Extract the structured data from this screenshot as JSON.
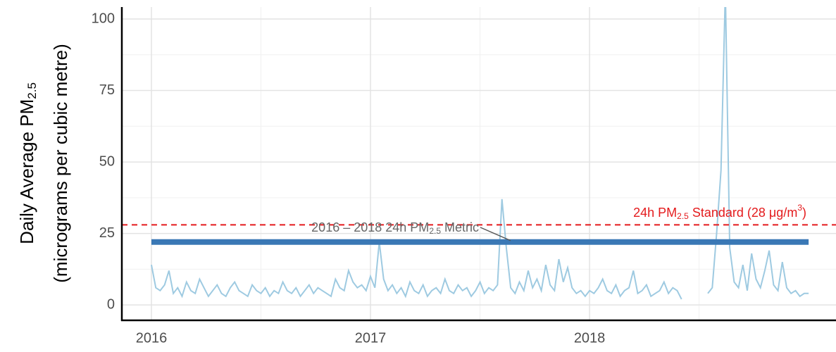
{
  "chart_data": {
    "type": "line",
    "y_label": {
      "main": "Daily Average  PM",
      "sub": "2.5",
      "line2": "(micrograms per cubic metre)"
    },
    "xlim": [
      2015.865,
      2019.125
    ],
    "ylim": [
      -5.4,
      104.2
    ],
    "xticks": [
      2016,
      2017,
      2018
    ],
    "yticks": [
      0,
      25,
      50,
      75,
      100
    ],
    "x_minor_ticks": [
      2016.5,
      2017.5,
      2018.5
    ],
    "y_minor_ticks": [
      12.5,
      37.5,
      62.5,
      87.5
    ],
    "grid": true,
    "series": [
      {
        "color": "#9ecae1",
        "x": [
          2016,
          2016.02,
          2016.04,
          2016.06,
          2016.08,
          2016.1,
          2016.12,
          2016.14,
          2016.16,
          2016.18,
          2016.2,
          2016.22,
          2016.24,
          2016.26,
          2016.28,
          2016.3,
          2016.32,
          2016.34,
          2016.36,
          2016.38,
          2016.4,
          2016.42,
          2016.44,
          2016.46,
          2016.48,
          2016.5,
          2016.52,
          2016.54,
          2016.56,
          2016.58,
          2016.6,
          2016.62,
          2016.64,
          2016.66,
          2016.68,
          2016.7,
          2016.72,
          2016.74,
          2016.76,
          2016.78,
          2016.8,
          2016.82,
          2016.84,
          2016.86,
          2016.88,
          2016.9,
          2016.92,
          2016.94,
          2016.96,
          2016.98,
          2017,
          2017.02,
          2017.04,
          2017.06,
          2017.08,
          2017.1,
          2017.12,
          2017.14,
          2017.16,
          2017.18,
          2017.2,
          2017.22,
          2017.24,
          2017.26,
          2017.28,
          2017.3,
          2017.32,
          2017.34,
          2017.36,
          2017.38,
          2017.4,
          2017.42,
          2017.44,
          2017.46,
          2017.48,
          2017.5,
          2017.52,
          2017.54,
          2017.56,
          2017.58,
          2017.6,
          2017.62,
          2017.64,
          2017.66,
          2017.68,
          2017.7,
          2017.72,
          2017.74,
          2017.76,
          2017.78,
          2017.8,
          2017.82,
          2017.84,
          2017.86,
          2017.88,
          2017.9,
          2017.92,
          2017.94,
          2017.96,
          2017.98,
          2018,
          2018.02,
          2018.04,
          2018.06,
          2018.08,
          2018.1,
          2018.12,
          2018.14,
          2018.16,
          2018.18,
          2018.2,
          2018.22,
          2018.24,
          2018.26,
          2018.28,
          2018.3,
          2018.32,
          2018.34,
          2018.36,
          2018.38,
          2018.4,
          2018.42,
          2018.44,
          2018.46,
          2018.48,
          2018.5,
          2018.52,
          2018.54,
          2018.56,
          2018.58,
          2018.6,
          2018.62,
          2018.64,
          2018.66,
          2018.68,
          2018.7,
          2018.72,
          2018.74,
          2018.76,
          2018.78,
          2018.8,
          2018.82,
          2018.84,
          2018.86,
          2018.88,
          2018.9,
          2018.92,
          2018.94,
          2018.96,
          2018.98,
          2019
        ],
        "values": [
          14,
          6,
          5,
          7,
          12,
          4,
          6,
          3,
          8,
          5,
          4,
          9,
          6,
          3,
          5,
          7,
          4,
          3,
          6,
          8,
          5,
          4,
          3,
          7,
          5,
          4,
          6,
          3,
          5,
          4,
          8,
          5,
          4,
          6,
          3,
          5,
          7,
          4,
          6,
          5,
          4,
          3,
          9,
          6,
          5,
          12,
          8,
          6,
          7,
          5,
          10,
          6,
          22,
          9,
          5,
          7,
          4,
          6,
          3,
          8,
          5,
          4,
          7,
          3,
          5,
          6,
          4,
          9,
          5,
          4,
          7,
          5,
          6,
          3,
          5,
          8,
          4,
          6,
          5,
          7,
          37,
          20,
          6,
          4,
          8,
          5,
          12,
          6,
          9,
          5,
          14,
          7,
          5,
          16,
          8,
          13,
          6,
          4,
          5,
          3,
          5,
          4,
          6,
          9,
          5,
          4,
          7,
          3,
          5,
          6,
          12,
          4,
          5,
          7,
          3,
          4,
          5,
          8,
          4,
          6,
          5,
          2,
          null,
          null,
          null,
          null,
          null,
          4,
          6,
          25,
          47,
          110,
          20,
          8,
          6,
          14,
          5,
          18,
          9,
          6,
          12,
          19,
          7,
          5,
          15,
          6,
          4,
          5,
          3,
          4,
          4
        ]
      }
    ],
    "metric": {
      "value": 22,
      "x": [
        2016,
        2019
      ],
      "color": "#3a78b5",
      "label": {
        "pre": "2016 – 2018 24h PM",
        "sub": "2.5",
        "post": " Metric"
      }
    },
    "standard": {
      "value": 28,
      "color": "#e41a1c",
      "label": {
        "pre": "24h PM",
        "sub": "2.5",
        "mid": " Standard (28 μg/m",
        "sup": "3",
        "post": ")"
      }
    }
  }
}
